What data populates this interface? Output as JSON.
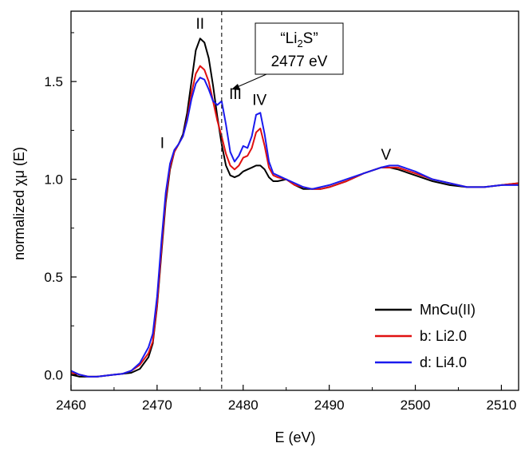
{
  "chart_data": {
    "type": "line",
    "xlabel": "E (eV)",
    "ylabel": "normalized χμ (E)",
    "xlim": [
      2460,
      2512
    ],
    "ylim": [
      -0.08,
      1.86
    ],
    "x_ticks": [
      2460,
      2470,
      2480,
      2490,
      2500,
      2510
    ],
    "x_tick_labels": [
      "2460",
      "2470",
      "2480",
      "2490",
      "2500",
      "2510"
    ],
    "y_ticks": [
      0.0,
      0.5,
      1.0,
      1.5
    ],
    "y_tick_labels": [
      "0.0",
      "0.5",
      "1.0",
      "1.5"
    ],
    "grid": false,
    "legend_position": "bottom-right",
    "reference_line": {
      "x": 2477.5,
      "style": "dashed"
    },
    "callout": {
      "line1_prefix": "“Li",
      "line1_sub": "2",
      "line1_suffix": "S”",
      "line2": "2477 eV"
    },
    "annotations": [
      {
        "text": "I",
        "x": 2470.6,
        "y": 1.16
      },
      {
        "text": "II",
        "x": 2475.0,
        "y": 1.77
      },
      {
        "text": "III",
        "x": 2479.1,
        "y": 1.41
      },
      {
        "text": "IV",
        "x": 2481.9,
        "y": 1.38
      },
      {
        "text": "V",
        "x": 2496.6,
        "y": 1.1
      }
    ],
    "series": [
      {
        "name": "MnCu(II)",
        "color": "#000000",
        "points": [
          [
            2460,
            0.0
          ],
          [
            2461,
            -0.01
          ],
          [
            2462,
            -0.01
          ],
          [
            2463,
            -0.01
          ],
          [
            2464,
            -0.005
          ],
          [
            2465,
            0.0
          ],
          [
            2466,
            0.005
          ],
          [
            2467,
            0.01
          ],
          [
            2468,
            0.03
          ],
          [
            2469,
            0.09
          ],
          [
            2469.5,
            0.16
          ],
          [
            2470,
            0.35
          ],
          [
            2470.5,
            0.62
          ],
          [
            2471,
            0.88
          ],
          [
            2471.5,
            1.05
          ],
          [
            2472,
            1.14
          ],
          [
            2472.5,
            1.18
          ],
          [
            2473,
            1.23
          ],
          [
            2473.5,
            1.34
          ],
          [
            2474,
            1.5
          ],
          [
            2474.5,
            1.66
          ],
          [
            2475,
            1.72
          ],
          [
            2475.5,
            1.7
          ],
          [
            2476,
            1.62
          ],
          [
            2476.5,
            1.48
          ],
          [
            2477,
            1.32
          ],
          [
            2477.5,
            1.18
          ],
          [
            2478,
            1.07
          ],
          [
            2478.5,
            1.02
          ],
          [
            2479,
            1.01
          ],
          [
            2479.5,
            1.02
          ],
          [
            2480,
            1.04
          ],
          [
            2480.5,
            1.05
          ],
          [
            2481,
            1.06
          ],
          [
            2481.5,
            1.07
          ],
          [
            2482,
            1.07
          ],
          [
            2482.5,
            1.05
          ],
          [
            2483,
            1.01
          ],
          [
            2483.5,
            0.99
          ],
          [
            2484,
            0.99
          ],
          [
            2485,
            1.0
          ],
          [
            2486,
            0.97
          ],
          [
            2487,
            0.95
          ],
          [
            2488,
            0.95
          ],
          [
            2489,
            0.95
          ],
          [
            2490,
            0.96
          ],
          [
            2492,
            0.99
          ],
          [
            2494,
            1.03
          ],
          [
            2496,
            1.06
          ],
          [
            2497,
            1.06
          ],
          [
            2498,
            1.05
          ],
          [
            2500,
            1.02
          ],
          [
            2502,
            0.99
          ],
          [
            2504,
            0.97
          ],
          [
            2506,
            0.96
          ],
          [
            2508,
            0.96
          ],
          [
            2510,
            0.97
          ],
          [
            2512,
            0.98
          ]
        ]
      },
      {
        "name": "b: Li2.0",
        "color": "#e01010",
        "points": [
          [
            2460,
            0.01
          ],
          [
            2461,
            0.0
          ],
          [
            2462,
            -0.01
          ],
          [
            2463,
            -0.01
          ],
          [
            2464,
            -0.005
          ],
          [
            2465,
            0.0
          ],
          [
            2466,
            0.005
          ],
          [
            2467,
            0.02
          ],
          [
            2468,
            0.05
          ],
          [
            2469,
            0.11
          ],
          [
            2469.5,
            0.17
          ],
          [
            2470,
            0.36
          ],
          [
            2470.5,
            0.64
          ],
          [
            2471,
            0.9
          ],
          [
            2471.5,
            1.06
          ],
          [
            2472,
            1.14
          ],
          [
            2472.5,
            1.18
          ],
          [
            2473,
            1.22
          ],
          [
            2473.5,
            1.31
          ],
          [
            2474,
            1.44
          ],
          [
            2474.5,
            1.54
          ],
          [
            2475,
            1.58
          ],
          [
            2475.5,
            1.56
          ],
          [
            2476,
            1.5
          ],
          [
            2476.5,
            1.4
          ],
          [
            2477,
            1.3
          ],
          [
            2477.5,
            1.22
          ],
          [
            2478,
            1.13
          ],
          [
            2478.5,
            1.07
          ],
          [
            2479,
            1.05
          ],
          [
            2479.5,
            1.07
          ],
          [
            2480,
            1.11
          ],
          [
            2480.5,
            1.12
          ],
          [
            2481,
            1.16
          ],
          [
            2481.5,
            1.24
          ],
          [
            2482,
            1.26
          ],
          [
            2482.5,
            1.17
          ],
          [
            2483,
            1.06
          ],
          [
            2483.5,
            1.02
          ],
          [
            2484,
            1.01
          ],
          [
            2485,
            1.0
          ],
          [
            2486,
            0.97
          ],
          [
            2487,
            0.96
          ],
          [
            2488,
            0.95
          ],
          [
            2489,
            0.95
          ],
          [
            2490,
            0.96
          ],
          [
            2492,
            0.99
          ],
          [
            2494,
            1.03
          ],
          [
            2496,
            1.06
          ],
          [
            2497,
            1.06
          ],
          [
            2498,
            1.06
          ],
          [
            2500,
            1.03
          ],
          [
            2502,
            1.0
          ],
          [
            2504,
            0.98
          ],
          [
            2506,
            0.96
          ],
          [
            2508,
            0.96
          ],
          [
            2510,
            0.97
          ],
          [
            2512,
            0.98
          ]
        ]
      },
      {
        "name": "d: Li4.0",
        "color": "#1a1aee",
        "points": [
          [
            2460,
            0.02
          ],
          [
            2461,
            0.0
          ],
          [
            2462,
            -0.01
          ],
          [
            2463,
            -0.01
          ],
          [
            2464,
            -0.005
          ],
          [
            2465,
            0.0
          ],
          [
            2466,
            0.005
          ],
          [
            2467,
            0.02
          ],
          [
            2468,
            0.06
          ],
          [
            2469,
            0.14
          ],
          [
            2469.5,
            0.21
          ],
          [
            2470,
            0.4
          ],
          [
            2470.5,
            0.68
          ],
          [
            2471,
            0.93
          ],
          [
            2471.5,
            1.08
          ],
          [
            2472,
            1.15
          ],
          [
            2472.5,
            1.18
          ],
          [
            2473,
            1.22
          ],
          [
            2473.5,
            1.3
          ],
          [
            2474,
            1.41
          ],
          [
            2474.5,
            1.49
          ],
          [
            2475,
            1.52
          ],
          [
            2475.5,
            1.51
          ],
          [
            2476,
            1.46
          ],
          [
            2476.5,
            1.4
          ],
          [
            2477,
            1.38
          ],
          [
            2477.5,
            1.4
          ],
          [
            2478,
            1.28
          ],
          [
            2478.5,
            1.14
          ],
          [
            2479,
            1.09
          ],
          [
            2479.5,
            1.12
          ],
          [
            2480,
            1.17
          ],
          [
            2480.5,
            1.16
          ],
          [
            2481,
            1.22
          ],
          [
            2481.5,
            1.33
          ],
          [
            2482,
            1.34
          ],
          [
            2482.5,
            1.23
          ],
          [
            2483,
            1.09
          ],
          [
            2483.5,
            1.03
          ],
          [
            2484,
            1.02
          ],
          [
            2485,
            1.0
          ],
          [
            2486,
            0.98
          ],
          [
            2487,
            0.96
          ],
          [
            2488,
            0.95
          ],
          [
            2489,
            0.96
          ],
          [
            2490,
            0.97
          ],
          [
            2492,
            1.0
          ],
          [
            2494,
            1.03
          ],
          [
            2496,
            1.06
          ],
          [
            2497,
            1.07
          ],
          [
            2498,
            1.07
          ],
          [
            2500,
            1.04
          ],
          [
            2502,
            1.0
          ],
          [
            2504,
            0.98
          ],
          [
            2506,
            0.96
          ],
          [
            2508,
            0.96
          ],
          [
            2510,
            0.97
          ],
          [
            2512,
            0.97
          ]
        ]
      }
    ]
  }
}
